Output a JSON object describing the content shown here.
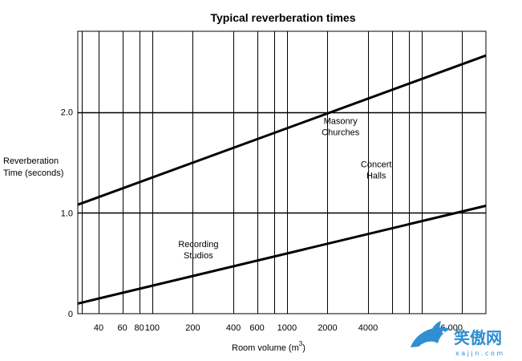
{
  "chart_data": {
    "type": "line",
    "title": "Typical reverberation times",
    "xlabel": "Room volume (m",
    "xlabel_sup": "3",
    "xlabel_close": ")",
    "ylabel_lines": [
      "Reverberation",
      "Time (seconds)"
    ],
    "x_scale": "log",
    "xlim": [
      28,
      30000
    ],
    "ylim": [
      0,
      2.8
    ],
    "grid": true,
    "x_ticks": [
      40,
      60,
      80,
      100,
      200,
      400,
      600,
      1000,
      2000,
      4000,
      16000
    ],
    "x_tick_labels": [
      "40",
      "60",
      "80",
      "100",
      "200",
      "400",
      "600",
      "1000",
      "2000",
      "4000",
      "16 000"
    ],
    "x_gridlines": [
      30,
      40,
      60,
      80,
      100,
      200,
      400,
      600,
      800,
      1000,
      2000,
      4000,
      6000,
      8000,
      10000,
      20000
    ],
    "y_ticks": [
      0,
      1.0,
      2.0
    ],
    "y_tick_labels": [
      "0",
      "1.0",
      "2.0"
    ],
    "series": [
      {
        "x": [
          28,
          30000
        ],
        "y": [
          1.08,
          2.56
        ]
      },
      {
        "x": [
          28,
          30000
        ],
        "y": [
          0.1,
          1.07
        ]
      }
    ],
    "annotations": [
      {
        "lines": [
          "Masonry",
          "Churches"
        ],
        "x": 2500,
        "y": 1.88
      },
      {
        "lines": [
          "Concert",
          "Halls"
        ],
        "x": 4600,
        "y": 1.45
      },
      {
        "lines": [
          "Recording",
          "Studios"
        ],
        "x": 220,
        "y": 0.66
      }
    ]
  },
  "watermark": {
    "text": "笑傲网",
    "subtext": "x a j j n . c o m",
    "color": "#2f8fd0"
  }
}
